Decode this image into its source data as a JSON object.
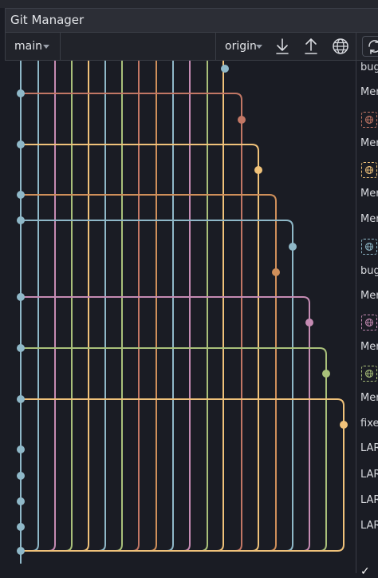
{
  "window": {
    "title": "Git Manager"
  },
  "toolbar": {
    "branch": "main",
    "remote": "origin",
    "fetch_icon": "arrow-down-icon",
    "push_icon": "arrow-up-icon",
    "web_icon": "globe-icon",
    "refresh_icon": "refresh-icon"
  },
  "commit_messages": [
    {
      "text": "bugfix"
    },
    {
      "text": "Merge"
    },
    {
      "text": "Merge"
    },
    {
      "text": "Merge"
    },
    {
      "text": "Merge"
    },
    {
      "text": "bugfix"
    },
    {
      "text": "Merge"
    },
    {
      "text": "Merge"
    },
    {
      "text": "Merge"
    },
    {
      "text": "fixed"
    },
    {
      "text": "LAR"
    },
    {
      "text": "LAR"
    },
    {
      "text": "LAR"
    },
    {
      "text": "LAR"
    }
  ],
  "branch_colors": [
    "#8fb8c8",
    "#c58bb3",
    "#a9c07a",
    "#f0c27a",
    "#8fb8c8",
    "#a9c07a",
    "#c27765",
    "#cf8f5a",
    "#8fb8c8",
    "#c58bb3",
    "#a9c07a",
    "#f0c27a"
  ],
  "commit_status": "✓"
}
